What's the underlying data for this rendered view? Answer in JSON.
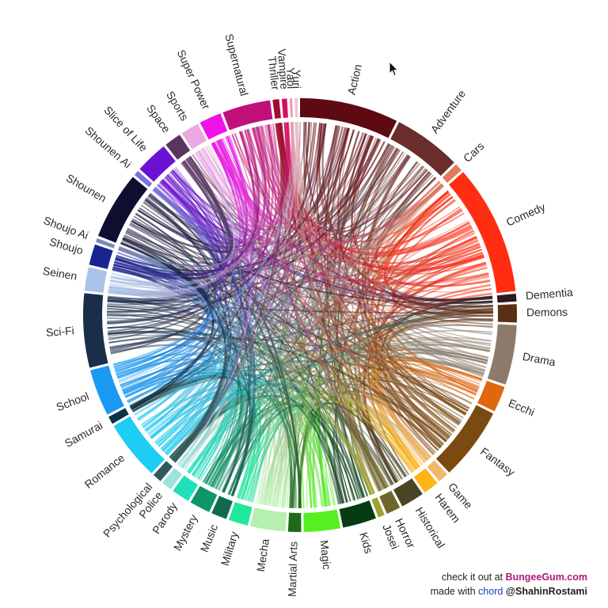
{
  "chart_data": {
    "type": "chord",
    "title": "",
    "groups": [
      {
        "name": "Action",
        "weight": 7.6,
        "color": "#5e0a12"
      },
      {
        "name": "Adventure",
        "weight": 5.2,
        "color": "#6a2d2c"
      },
      {
        "name": "Cars",
        "weight": 0.6,
        "color": "#e27a60"
      },
      {
        "name": "Comedy",
        "weight": 10.0,
        "color": "#ff2e12"
      },
      {
        "name": "Dementia",
        "weight": 0.6,
        "color": "#2a1a1e"
      },
      {
        "name": "Demons",
        "weight": 1.4,
        "color": "#5c2e12"
      },
      {
        "name": "Drama",
        "weight": 4.6,
        "color": "#8c7b6a"
      },
      {
        "name": "Ecchi",
        "weight": 2.0,
        "color": "#e2660e"
      },
      {
        "name": "Fantasy",
        "weight": 5.6,
        "color": "#7b4a10"
      },
      {
        "name": "Game",
        "weight": 0.8,
        "color": "#f2b86a"
      },
      {
        "name": "Harem",
        "weight": 1.2,
        "color": "#ffb316"
      },
      {
        "name": "Historical",
        "weight": 1.8,
        "color": "#4a4426"
      },
      {
        "name": "Horror",
        "weight": 1.1,
        "color": "#6e6828"
      },
      {
        "name": "Josei",
        "weight": 0.5,
        "color": "#a0a030"
      },
      {
        "name": "Kids",
        "weight": 2.6,
        "color": "#073c12"
      },
      {
        "name": "Magic",
        "weight": 2.8,
        "color": "#56f020"
      },
      {
        "name": "Martial Arts",
        "weight": 1.0,
        "color": "#1e6a18"
      },
      {
        "name": "Mecha",
        "weight": 2.7,
        "color": "#b6f0ae"
      },
      {
        "name": "Military",
        "weight": 1.5,
        "color": "#20e89a"
      },
      {
        "name": "Music",
        "weight": 1.2,
        "color": "#0f6a4e"
      },
      {
        "name": "Mystery",
        "weight": 1.6,
        "color": "#10956a"
      },
      {
        "name": "Parody",
        "weight": 1.4,
        "color": "#1ee0bc"
      },
      {
        "name": "Police",
        "weight": 0.8,
        "color": "#9ee2da"
      },
      {
        "name": "Psychological",
        "weight": 0.7,
        "color": "#2e5a5e"
      },
      {
        "name": "Romance",
        "weight": 4.6,
        "color": "#1ecdf2"
      },
      {
        "name": "Samurai",
        "weight": 0.6,
        "color": "#0a3446"
      },
      {
        "name": "School",
        "weight": 3.6,
        "color": "#1a9af2"
      },
      {
        "name": "Sci-Fi",
        "weight": 5.7,
        "color": "#1a2e4a"
      },
      {
        "name": "Seinen",
        "weight": 1.8,
        "color": "#a8c2e8"
      },
      {
        "name": "Shoujo",
        "weight": 1.6,
        "color": "#1a2490"
      },
      {
        "name": "Shoujo Ai",
        "weight": 0.3,
        "color": "#7a8ab8"
      },
      {
        "name": "Shounen",
        "weight": 5.2,
        "color": "#0e0e30"
      },
      {
        "name": "Shounen Ai",
        "weight": 0.4,
        "color": "#7a70e0"
      },
      {
        "name": "Slice of Life",
        "weight": 2.5,
        "color": "#6a12d2"
      },
      {
        "name": "Space",
        "weight": 1.3,
        "color": "#5a3460"
      },
      {
        "name": "Sports",
        "weight": 1.4,
        "color": "#e8a8e2"
      },
      {
        "name": "Super Power",
        "weight": 1.7,
        "color": "#ee12e8"
      },
      {
        "name": "Supernatural",
        "weight": 3.7,
        "color": "#c0107a"
      },
      {
        "name": "Thriller",
        "weight": 0.5,
        "color": "#a00e2e"
      },
      {
        "name": "Vampire",
        "weight": 0.4,
        "color": "#d41062"
      },
      {
        "name": "Yaoi",
        "weight": 0.2,
        "color": "#e8a0b0"
      },
      {
        "name": "Yuri",
        "weight": 0.2,
        "color": "#f0c0cc"
      }
    ],
    "legend": "none",
    "grid": false
  },
  "credits": {
    "line1_text": "check it out at ",
    "line1_link": "BungeeGum.com",
    "line2_text": "made with ",
    "line2_link": "chord",
    "line2_handle": "@ShahinRostami"
  },
  "cursor": {
    "icon": "mouse-pointer-icon"
  }
}
